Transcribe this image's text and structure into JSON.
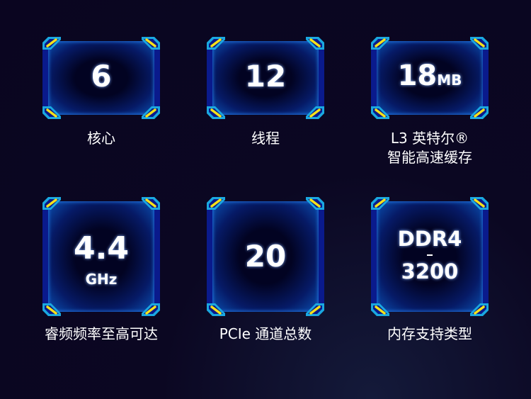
{
  "specs": [
    {
      "value": "6",
      "unit": "",
      "label1": "核心",
      "label2": ""
    },
    {
      "value": "12",
      "unit": "",
      "label1": "线程",
      "label2": ""
    },
    {
      "value": "18",
      "unit": "MB",
      "label1": "L3 英特尔®",
      "label2": "智能高速缓存"
    },
    {
      "value": "4.4",
      "unit": "GHz",
      "label1": "睿频频率至高可达",
      "label2": ""
    },
    {
      "value": "20",
      "unit": "",
      "label1": "PCIe 通道总数",
      "label2": ""
    },
    {
      "value": "DDR4",
      "unit": "3200",
      "label1": "内存支持类型",
      "label2": ""
    }
  ],
  "colors": {
    "background": "#0a0520",
    "frame": "#0a1a8c",
    "accent": "#f5e11a",
    "glow": "#2a8cff"
  }
}
